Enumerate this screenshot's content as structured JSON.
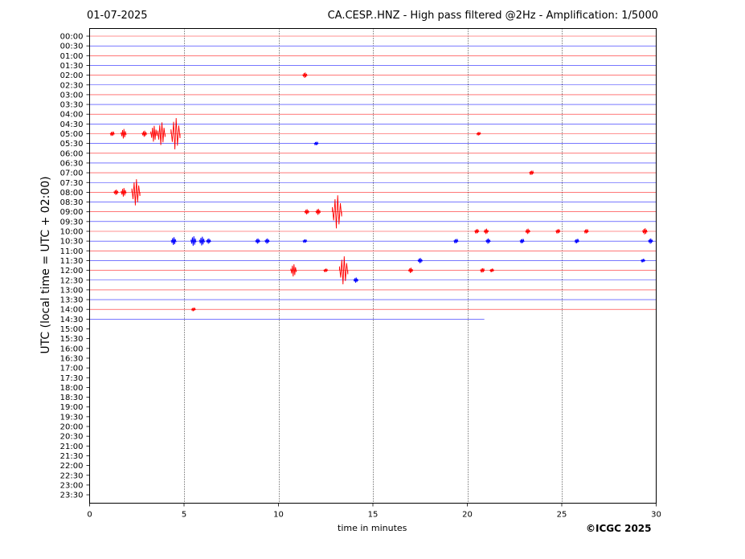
{
  "header": {
    "date": "01-07-2025",
    "title": "CA.CESP..HNZ - High pass filtered @2Hz - Amplification: 1/5000"
  },
  "footer": {
    "credit": "©ICGC 2025"
  },
  "chart_data": {
    "type": "line",
    "title": "CA.CESP..HNZ - High pass filtered @2Hz - Amplification: 1/5000",
    "xlabel": "time in minutes",
    "ylabel": "UTC (local time = UTC + 02:00)",
    "xlim": [
      0,
      30
    ],
    "x_ticks": [
      "0",
      "5",
      "10",
      "15",
      "20",
      "25",
      "30"
    ],
    "x_tick_values": [
      0,
      5,
      10,
      15,
      20,
      25,
      30
    ],
    "grid": "vertical dotted lines at 5, 10, 15, 20, 25",
    "y_ticks": [
      "00:00",
      "00:30",
      "01:00",
      "01:30",
      "02:00",
      "02:30",
      "03:00",
      "03:30",
      "04:00",
      "04:30",
      "05:00",
      "05:30",
      "06:00",
      "06:30",
      "07:00",
      "07:30",
      "08:00",
      "08:30",
      "09:00",
      "09:30",
      "10:00",
      "10:30",
      "11:00",
      "11:30",
      "12:00",
      "12:30",
      "13:00",
      "13:30",
      "14:00",
      "14:30",
      "15:00",
      "15:30",
      "16:00",
      "16:30",
      "17:00",
      "17:30",
      "18:00",
      "18:30",
      "19:00",
      "19:30",
      "20:00",
      "20:30",
      "21:00",
      "21:30",
      "22:00",
      "22:30",
      "23:00",
      "23:30"
    ],
    "colors": {
      "even_rows": "#ff0000",
      "odd_rows": "#0000ff",
      "grid": "#000000"
    },
    "recorded_rows": 30,
    "last_row_end_minute": 20.9,
    "events": [
      {
        "row": "02:00",
        "minute": 11.4,
        "amplitude": 0.3
      },
      {
        "row": "05:00",
        "minute": 1.2,
        "amplitude": 0.25
      },
      {
        "row": "05:00",
        "minute": 1.8,
        "amplitude": 0.55
      },
      {
        "row": "05:00",
        "minute": 2.9,
        "amplitude": 0.35
      },
      {
        "row": "05:00",
        "minute": 3.4,
        "amplitude": 0.9
      },
      {
        "row": "05:00",
        "minute": 3.8,
        "amplitude": 1.3
      },
      {
        "row": "05:00",
        "minute": 4.55,
        "amplitude": 1.8
      },
      {
        "row": "05:00",
        "minute": 20.6,
        "amplitude": 0.2
      },
      {
        "row": "05:30",
        "minute": 12.0,
        "amplitude": 0.2
      },
      {
        "row": "07:00",
        "minute": 23.4,
        "amplitude": 0.25
      },
      {
        "row": "08:00",
        "minute": 1.4,
        "amplitude": 0.3
      },
      {
        "row": "08:00",
        "minute": 1.8,
        "amplitude": 0.5
      },
      {
        "row": "08:00",
        "minute": 2.45,
        "amplitude": 1.5
      },
      {
        "row": "09:00",
        "minute": 11.5,
        "amplitude": 0.3
      },
      {
        "row": "09:00",
        "minute": 12.1,
        "amplitude": 0.35
      },
      {
        "row": "09:00",
        "minute": 13.1,
        "amplitude": 1.9
      },
      {
        "row": "10:00",
        "minute": 20.5,
        "amplitude": 0.25
      },
      {
        "row": "10:00",
        "minute": 21.0,
        "amplitude": 0.3
      },
      {
        "row": "10:00",
        "minute": 23.2,
        "amplitude": 0.3
      },
      {
        "row": "10:00",
        "minute": 24.8,
        "amplitude": 0.25
      },
      {
        "row": "10:00",
        "minute": 26.3,
        "amplitude": 0.25
      },
      {
        "row": "10:00",
        "minute": 29.4,
        "amplitude": 0.35
      },
      {
        "row": "10:30",
        "minute": 4.45,
        "amplitude": 0.45
      },
      {
        "row": "10:30",
        "minute": 5.5,
        "amplitude": 0.55
      },
      {
        "row": "10:30",
        "minute": 5.95,
        "amplitude": 0.5
      },
      {
        "row": "10:30",
        "minute": 6.3,
        "amplitude": 0.3
      },
      {
        "row": "10:30",
        "minute": 8.9,
        "amplitude": 0.3
      },
      {
        "row": "10:30",
        "minute": 9.4,
        "amplitude": 0.3
      },
      {
        "row": "10:30",
        "minute": 11.4,
        "amplitude": 0.2
      },
      {
        "row": "10:30",
        "minute": 19.4,
        "amplitude": 0.25
      },
      {
        "row": "10:30",
        "minute": 21.1,
        "amplitude": 0.3
      },
      {
        "row": "10:30",
        "minute": 22.9,
        "amplitude": 0.25
      },
      {
        "row": "10:30",
        "minute": 25.8,
        "amplitude": 0.25
      },
      {
        "row": "10:30",
        "minute": 29.7,
        "amplitude": 0.3
      },
      {
        "row": "11:30",
        "minute": 17.5,
        "amplitude": 0.3
      },
      {
        "row": "11:30",
        "minute": 29.3,
        "amplitude": 0.2
      },
      {
        "row": "12:00",
        "minute": 10.8,
        "amplitude": 0.7
      },
      {
        "row": "12:00",
        "minute": 12.5,
        "amplitude": 0.2
      },
      {
        "row": "12:00",
        "minute": 13.45,
        "amplitude": 1.6
      },
      {
        "row": "12:00",
        "minute": 17.0,
        "amplitude": 0.3
      },
      {
        "row": "12:00",
        "minute": 20.8,
        "amplitude": 0.25
      },
      {
        "row": "12:00",
        "minute": 21.3,
        "amplitude": 0.2
      },
      {
        "row": "12:30",
        "minute": 14.1,
        "amplitude": 0.3
      },
      {
        "row": "14:00",
        "minute": 5.5,
        "amplitude": 0.2
      }
    ]
  }
}
